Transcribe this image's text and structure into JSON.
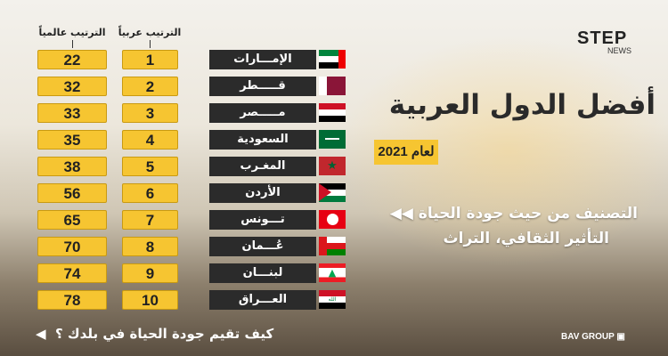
{
  "logo": {
    "brand": "STEP",
    "sub": "NEWS"
  },
  "headers": {
    "world_rank": "الترتيب عالمياً",
    "arab_rank": "الترتيب عربياً"
  },
  "rows": [
    {
      "country": "الإمـــارات",
      "arab": "1",
      "world": "22",
      "flag": "uae"
    },
    {
      "country": "قـــــطر",
      "arab": "2",
      "world": "32",
      "flag": "qatar"
    },
    {
      "country": "مـــــصر",
      "arab": "3",
      "world": "33",
      "flag": "egypt"
    },
    {
      "country": "السعودية",
      "arab": "4",
      "world": "35",
      "flag": "saudi"
    },
    {
      "country": "المغـرب",
      "arab": "5",
      "world": "38",
      "flag": "morocco"
    },
    {
      "country": "الأردن",
      "arab": "6",
      "world": "56",
      "flag": "jordan"
    },
    {
      "country": "تـــونس",
      "arab": "7",
      "world": "65",
      "flag": "tunisia"
    },
    {
      "country": "عُـــمان",
      "arab": "8",
      "world": "70",
      "flag": "oman"
    },
    {
      "country": "لبنـــان",
      "arab": "9",
      "world": "74",
      "flag": "lebanon"
    },
    {
      "country": "العـــراق",
      "arab": "10",
      "world": "78",
      "flag": "iraq"
    }
  ],
  "title": "أفضل الدول العربية",
  "year": "لعام 2021",
  "subtitle": {
    "line1": "التصنيف من حيث جودة الحياة",
    "line2": "التأثير الثقافي، التراث"
  },
  "question": "كيف تقيم جودة الحياة في بلدك ؟",
  "footer": "BAV GROUP",
  "colors": {
    "accent": "#f6c531",
    "name_box": "#2b2b2b"
  }
}
